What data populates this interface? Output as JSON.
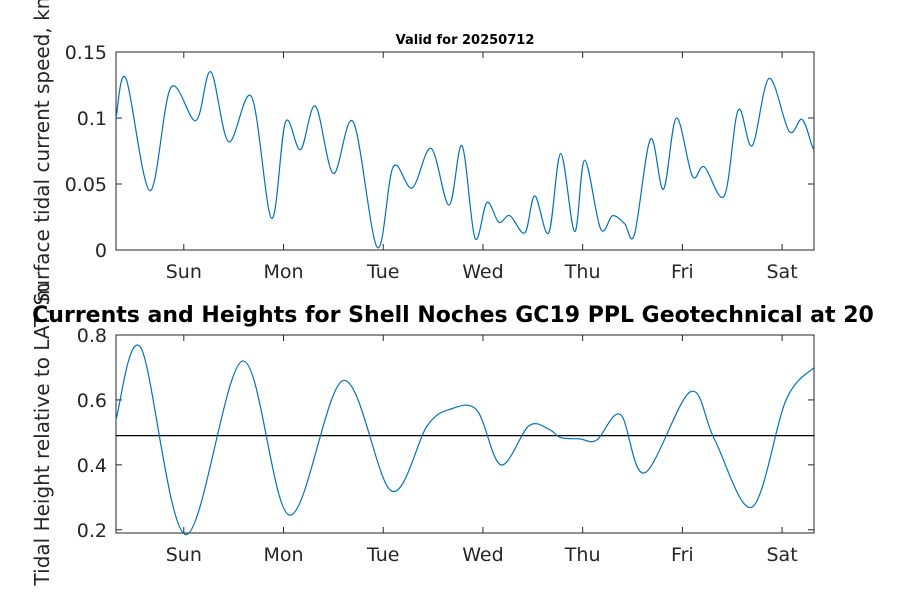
{
  "chart_data": [
    {
      "type": "line",
      "title": "Valid for 20250712",
      "ylabel": "Surface tidal current speed, kn",
      "xlabel": "",
      "ylim": [
        0,
        0.15
      ],
      "yticks": [
        0,
        0.05,
        0.1,
        0.15
      ],
      "ytick_labels": [
        "0",
        "0.05",
        "0.1",
        "0.15"
      ],
      "x_range_days": [
        0.0,
        7.0
      ],
      "xticks": [
        0.68,
        1.68,
        2.68,
        3.68,
        4.68,
        5.68,
        6.68
      ],
      "xtick_labels": [
        "Sun",
        "Mon",
        "Tue",
        "Wed",
        "Thu",
        "Fri",
        "Sat"
      ],
      "grid": false,
      "color": "#0072BD",
      "series": [
        {
          "x": [
            0.0,
            0.1,
            0.34,
            0.55,
            0.8,
            0.95,
            1.13,
            1.36,
            1.56,
            1.7,
            1.85,
            2.0,
            2.18,
            2.38,
            2.62,
            2.78,
            2.97,
            3.16,
            3.34,
            3.47,
            3.6,
            3.72,
            3.84,
            3.95,
            4.1,
            4.2,
            4.34,
            4.46,
            4.6,
            4.7,
            4.86,
            4.98,
            5.1,
            5.2,
            5.36,
            5.49,
            5.62,
            5.78,
            5.9,
            6.1,
            6.24,
            6.38,
            6.55,
            6.75,
            6.88,
            6.98,
            7.0
          ],
          "y": [
            0.1,
            0.13,
            0.045,
            0.123,
            0.098,
            0.135,
            0.082,
            0.116,
            0.024,
            0.097,
            0.076,
            0.109,
            0.058,
            0.097,
            0.002,
            0.063,
            0.047,
            0.077,
            0.034,
            0.079,
            0.009,
            0.036,
            0.021,
            0.026,
            0.013,
            0.041,
            0.013,
            0.073,
            0.014,
            0.068,
            0.016,
            0.026,
            0.02,
            0.012,
            0.084,
            0.046,
            0.1,
            0.056,
            0.063,
            0.041,
            0.106,
            0.079,
            0.13,
            0.09,
            0.099,
            0.079,
            0.076
          ]
        }
      ]
    },
    {
      "type": "line",
      "title": "Currents and Heights for Shell Noches   GC19 PPL  Geotechnical at 20",
      "ylabel": "Tidal Height relative to LAT, m",
      "xlabel": "",
      "ylim": [
        0.19,
        0.8
      ],
      "yticks": [
        0.2,
        0.4,
        0.6,
        0.8
      ],
      "ytick_labels": [
        "0.2",
        "0.4",
        "0.6",
        "0.8"
      ],
      "x_range_days": [
        0.0,
        7.0
      ],
      "xticks": [
        0.68,
        1.68,
        2.68,
        3.68,
        4.68,
        5.68,
        6.68
      ],
      "xtick_labels": [
        "Sun",
        "Mon",
        "Tue",
        "Wed",
        "Thu",
        "Fri",
        "Sat"
      ],
      "grid": false,
      "reference_line": 0.49,
      "series_color": "#0072BD",
      "series": [
        {
          "x": [
            0.0,
            0.25,
            0.7,
            1.27,
            1.74,
            2.28,
            2.76,
            3.12,
            3.36,
            3.62,
            3.86,
            4.14,
            4.34,
            4.46,
            4.65,
            4.82,
            5.06,
            5.3,
            5.76,
            6.0,
            6.38,
            6.72,
            7.0
          ],
          "y": [
            0.54,
            0.76,
            0.185,
            0.72,
            0.245,
            0.66,
            0.32,
            0.52,
            0.572,
            0.568,
            0.4,
            0.52,
            0.51,
            0.484,
            0.48,
            0.476,
            0.555,
            0.375,
            0.625,
            0.48,
            0.27,
            0.6,
            0.7
          ]
        }
      ]
    }
  ]
}
